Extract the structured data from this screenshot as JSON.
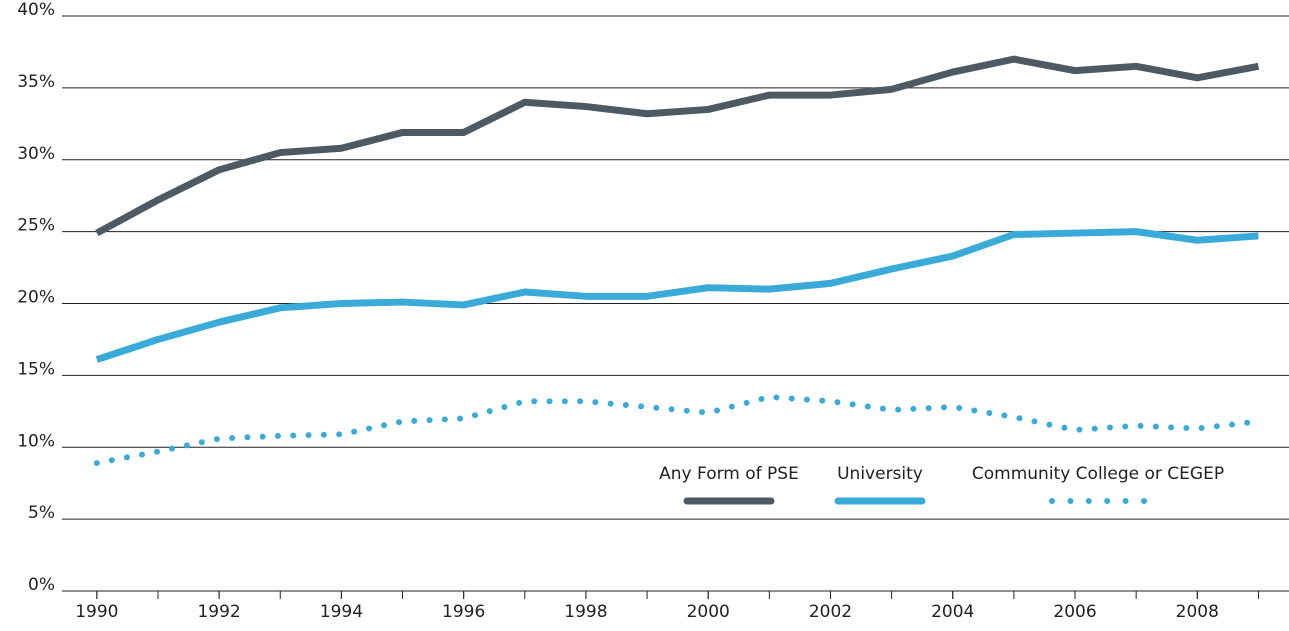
{
  "chart_data": {
    "type": "line",
    "x": [
      1990,
      1991,
      1992,
      1993,
      1994,
      1995,
      1996,
      1997,
      1998,
      1999,
      2000,
      2001,
      2002,
      2003,
      2004,
      2005,
      2006,
      2007,
      2008,
      2009
    ],
    "series": [
      {
        "name": "Any Form of PSE",
        "color": "#4d5a63",
        "style": "solid",
        "values": [
          24.9,
          27.2,
          29.3,
          30.5,
          30.8,
          31.9,
          31.9,
          34.0,
          33.7,
          33.2,
          33.5,
          34.5,
          34.5,
          34.9,
          36.1,
          37.0,
          36.2,
          36.5,
          35.7,
          36.5
        ]
      },
      {
        "name": "University",
        "color": "#3aaad8",
        "style": "solid",
        "values": [
          16.1,
          17.5,
          18.7,
          19.7,
          20.0,
          20.1,
          19.9,
          20.8,
          20.5,
          20.5,
          21.1,
          21.0,
          21.4,
          22.4,
          23.3,
          24.8,
          24.9,
          25.0,
          24.4,
          24.7
        ]
      },
      {
        "name": "Community College or CEGEP",
        "color": "#3aaad8",
        "style": "dotted",
        "values": [
          8.9,
          9.7,
          10.6,
          10.8,
          10.9,
          11.8,
          12.0,
          13.2,
          13.2,
          12.8,
          12.4,
          13.5,
          13.2,
          12.6,
          12.8,
          12.1,
          11.2,
          11.5,
          11.3,
          11.8
        ]
      }
    ],
    "xlim": [
      1989.43,
      2009.5
    ],
    "xticks": [
      1990,
      1992,
      1994,
      1996,
      1998,
      2000,
      2002,
      2004,
      2006,
      2008
    ],
    "ylim": [
      0,
      40
    ],
    "yticks": [
      {
        "value": 0,
        "label": "0%"
      },
      {
        "value": 5,
        "label": "5%"
      },
      {
        "value": 10,
        "label": "10%"
      },
      {
        "value": 15,
        "label": "15%"
      },
      {
        "value": 20,
        "label": "20%"
      },
      {
        "value": 25,
        "label": "25%"
      },
      {
        "value": 30,
        "label": "30%"
      },
      {
        "value": 35,
        "label": "35%"
      },
      {
        "value": 40,
        "label": "40%"
      }
    ],
    "grid": true,
    "legend": "bottom-right"
  }
}
